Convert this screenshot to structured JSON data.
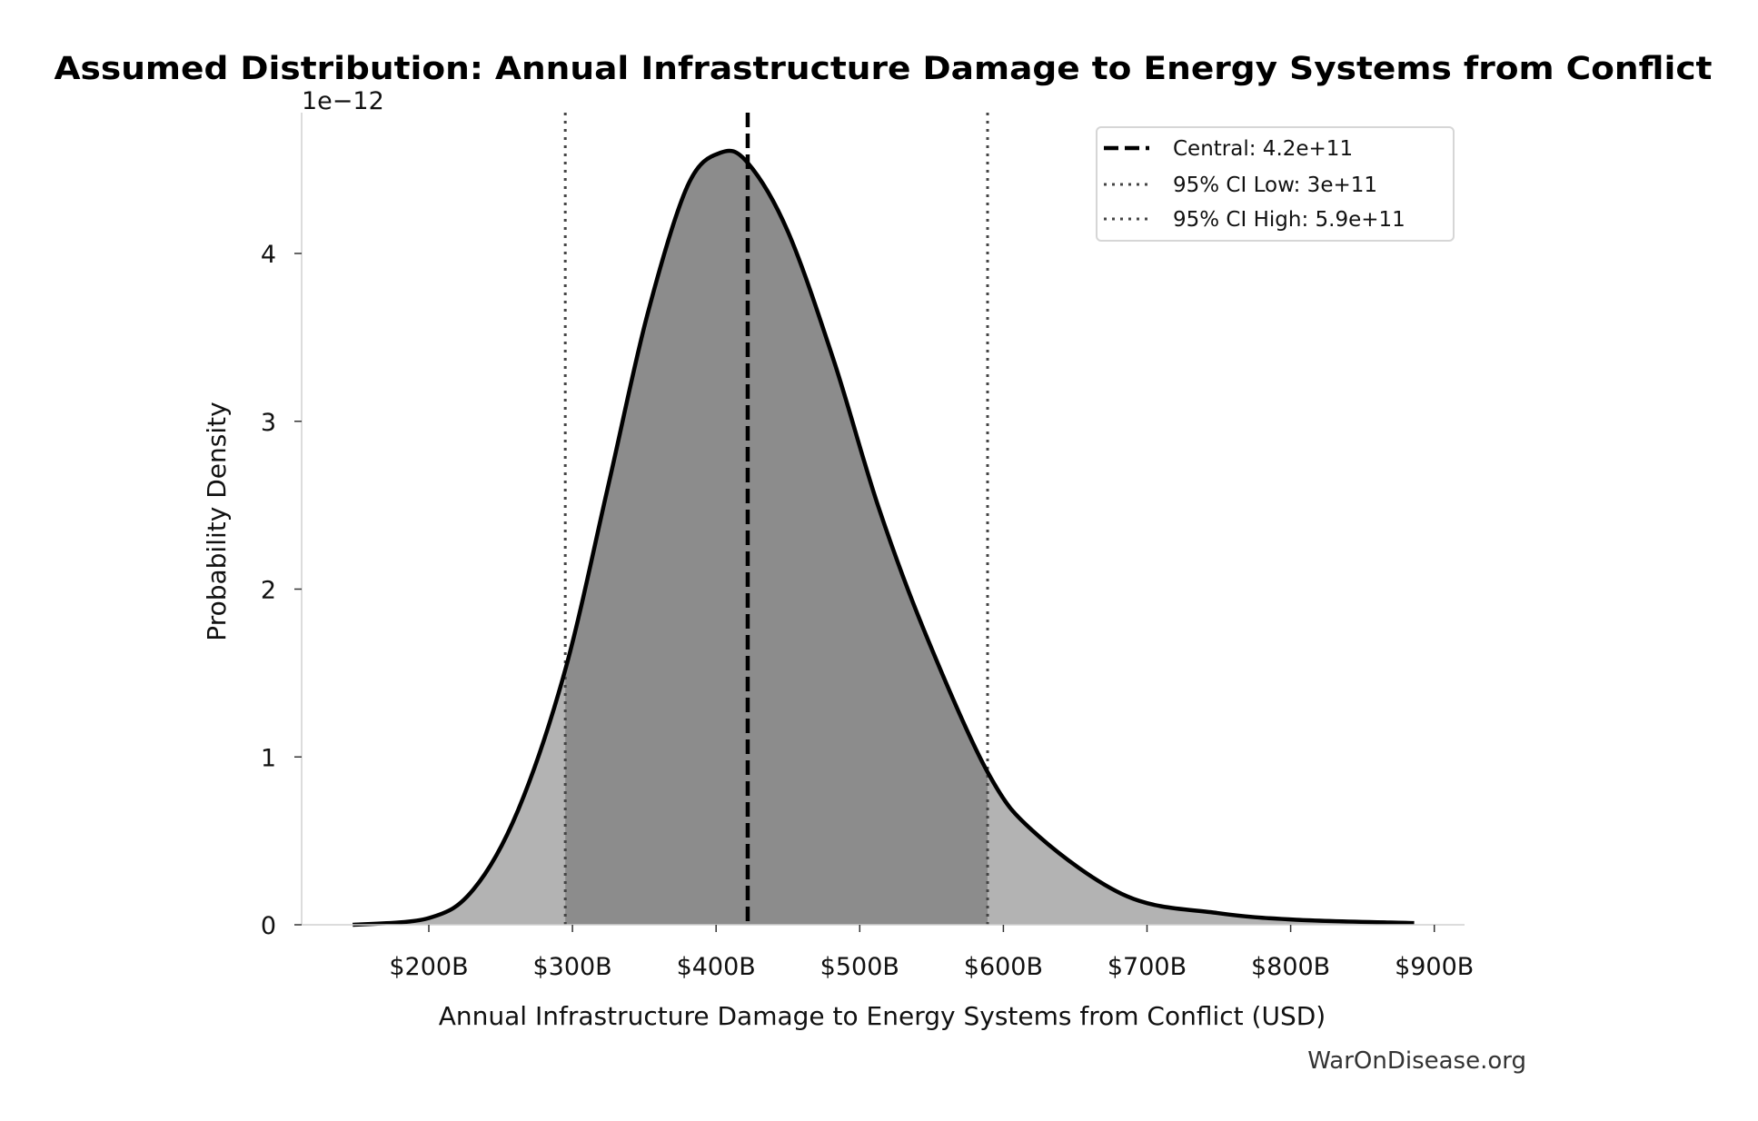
{
  "chart_data": {
    "type": "area",
    "title": "Assumed Distribution: Annual Infrastructure Damage to Energy Systems from Conflict",
    "xlabel": "Annual Infrastructure Damage to Energy Systems from Conflict (USD)",
    "ylabel": "Probability Density",
    "y_offset_label": "1e−12",
    "x_units": "billions USD",
    "xlim": [
      110,
      920
    ],
    "ylim": [
      0,
      4.82
    ],
    "x_ticks": [
      200,
      300,
      400,
      500,
      600,
      700,
      800,
      900
    ],
    "x_tick_labels": [
      "$200B",
      "$300B",
      "$400B",
      "$500B",
      "$600B",
      "$700B",
      "$800B",
      "$900B"
    ],
    "y_ticks": [
      0,
      1,
      2,
      3,
      4
    ],
    "y_tick_labels": [
      "0",
      "1",
      "2",
      "3",
      "4"
    ],
    "grid": false,
    "legend_position": "top-right",
    "series": [
      {
        "x": [
          147,
          200,
          231,
          262,
          295,
          325,
          352,
          380,
          403,
          422,
          450,
          482,
          513,
          545,
          589,
          623,
          686,
          749,
          804,
          886
        ],
        "y": [
          0.0,
          0.04,
          0.21,
          0.68,
          1.52,
          2.62,
          3.63,
          4.4,
          4.6,
          4.54,
          4.13,
          3.36,
          2.49,
          1.75,
          0.91,
          0.54,
          0.17,
          0.07,
          0.03,
          0.01
        ],
        "color": "#000000"
      }
    ],
    "ci_shading": {
      "from": 295,
      "to": 589,
      "inner_color": "#8c8c8c",
      "outer_color": "#b3b3b3"
    },
    "reference_lines": [
      {
        "x": 422,
        "style": "dashed",
        "color": "#000000",
        "label": "Central: 4.2e+11"
      },
      {
        "x": 295,
        "style": "dotted",
        "color": "#444444",
        "label": "95% CI Low: 3e+11"
      },
      {
        "x": 589,
        "style": "dotted",
        "color": "#444444",
        "label": "95% CI High: 5.9e+11"
      }
    ]
  },
  "watermark": "WarOnDisease.org"
}
